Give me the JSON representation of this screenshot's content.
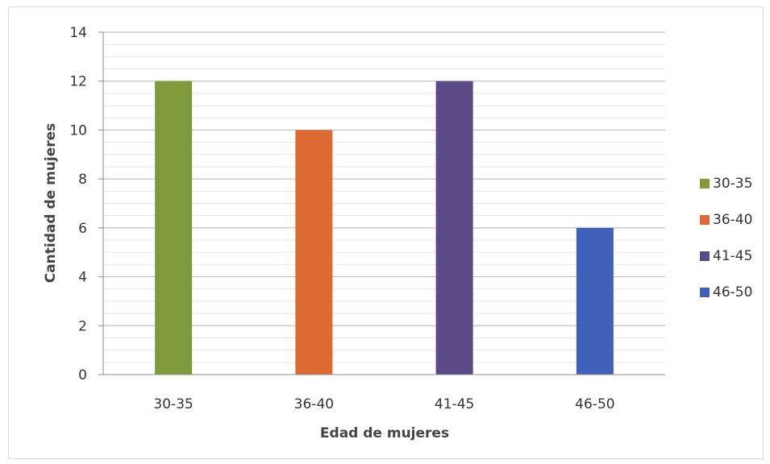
{
  "chart_data": {
    "type": "bar",
    "categories": [
      "30-35",
      "36-40",
      "41-45",
      "46-50"
    ],
    "values": [
      12,
      10,
      12,
      6
    ],
    "colors": [
      "#7f9a3a",
      "#dd6a33",
      "#5b4a86",
      "#3f62b8"
    ],
    "xlabel": "Edad de mujeres",
    "ylabel": "Cantidad de mujeres",
    "ylim": [
      0,
      14
    ],
    "yticks": [
      0,
      2,
      4,
      6,
      8,
      10,
      12,
      14
    ],
    "grid": true,
    "legend": {
      "placement": "right",
      "entries": [
        "30-35",
        "36-40",
        "41-45",
        "46-50"
      ]
    }
  }
}
